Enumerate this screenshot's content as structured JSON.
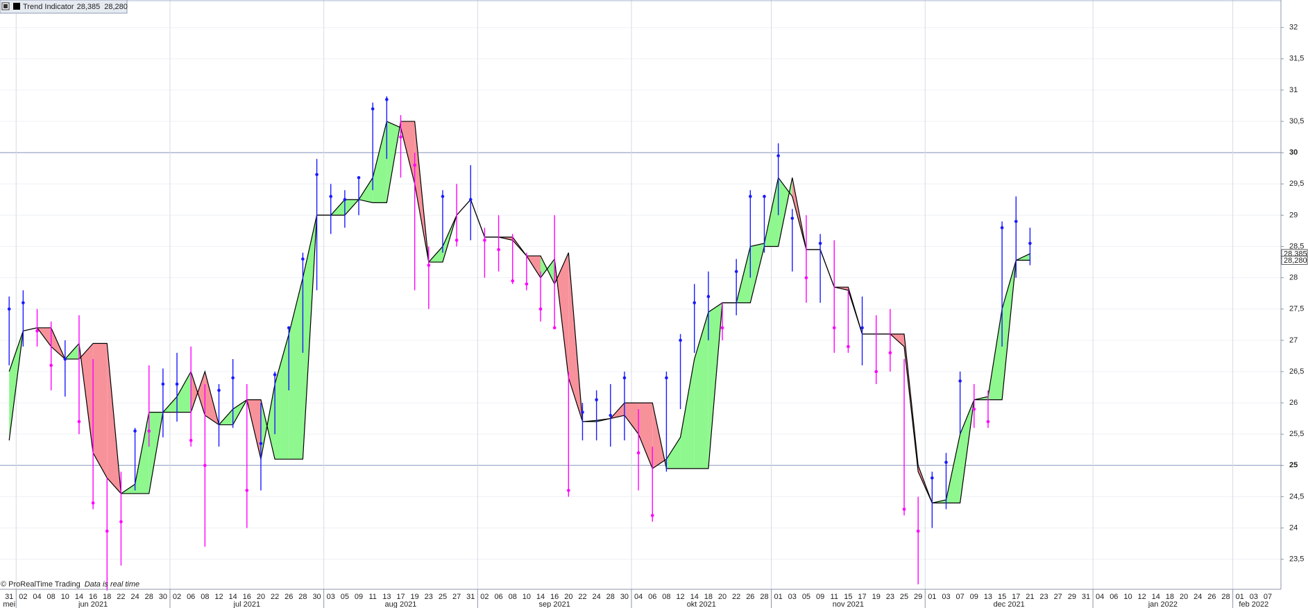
{
  "chart_data": {
    "type": "trend-indicator",
    "legend_label": "Trend Indicator",
    "last_values": [
      {
        "value": 28.385,
        "label": "28,385"
      },
      {
        "value": 28.28,
        "label": "28,280"
      }
    ],
    "x_labels": [
      "31",
      "02",
      "04",
      "08",
      "10",
      "14",
      "16",
      "18",
      "22",
      "24",
      "28",
      "30",
      "02",
      "06",
      "08",
      "12",
      "14",
      "16",
      "20",
      "22",
      "26",
      "28",
      "30",
      "03",
      "05",
      "09",
      "11",
      "13",
      "17",
      "19",
      "23",
      "25",
      "27",
      "31",
      "02",
      "06",
      "08",
      "10",
      "14",
      "16",
      "20",
      "22",
      "24",
      "28",
      "30",
      "04",
      "06",
      "08",
      "12",
      "14",
      "18",
      "20",
      "22",
      "26",
      "28",
      "01",
      "03",
      "05",
      "09",
      "11",
      "15",
      "17",
      "19",
      "23",
      "25",
      "29",
      "01",
      "03",
      "07",
      "09",
      "13",
      "15",
      "17",
      "21",
      "23",
      "27",
      "29",
      "31",
      "04",
      "06",
      "10",
      "12",
      "14",
      "18",
      "20",
      "24",
      "26",
      "28",
      "01",
      "03",
      "07"
    ],
    "month_labels": [
      "mei",
      "jun 2021",
      "jul 2021",
      "aug 2021",
      "sep 2021",
      "okt 2021",
      "nov 2021",
      "dec 2021",
      "jan 2022",
      "feb 2022"
    ],
    "ylim": [
      23.02,
      32.44
    ],
    "yticks": [
      {
        "value": 23.5,
        "label": "23,5"
      },
      24,
      {
        "value": 24.5,
        "label": "24,5"
      },
      25,
      {
        "value": 25.5,
        "label": "25,5"
      },
      26,
      {
        "value": 26.5,
        "label": "26,5"
      },
      27,
      {
        "value": 27.5,
        "label": "27,5"
      },
      28,
      {
        "value": 28.5,
        "label": "28,5"
      },
      29,
      {
        "value": 29.5,
        "label": "29,5"
      },
      30,
      {
        "value": 30.5,
        "label": "30,5"
      },
      31,
      {
        "value": 31.5,
        "label": "31,5"
      },
      32
    ],
    "highlight_lines": [
      25,
      30
    ],
    "grid": true,
    "bar_colors": {
      "up": "#1a1aff",
      "down": "#ff00ff"
    },
    "bars": {
      "high": [
        27.7,
        27.8,
        27.5,
        27.3,
        27.0,
        27.4,
        26.7,
        24.8,
        24.9,
        25.6,
        26.6,
        26.55,
        26.8,
        26.9,
        26.3,
        26.3,
        26.7,
        26.3,
        26.0,
        26.5,
        27.2,
        28.4,
        29.9,
        29.5,
        29.4,
        29.6,
        30.8,
        30.9,
        30.6,
        30.0,
        28.5,
        29.4,
        29.5,
        29.8,
        28.8,
        29.0,
        28.7,
        28.4,
        28.1,
        29.0,
        26.5,
        26.0,
        26.2,
        26.3,
        26.5,
        25.9,
        25.3,
        26.5,
        27.1,
        27.9,
        28.1,
        27.6,
        28.3,
        29.4,
        29.3,
        30.15,
        29.1,
        29.0,
        28.7,
        28.6,
        27.8,
        27.7,
        27.4,
        27.5,
        26.7,
        24.5,
        24.9,
        25.2,
        26.5,
        26.3,
        26.2,
        28.9,
        29.3,
        28.8,
        null,
        null,
        null,
        null,
        null,
        null,
        null,
        null,
        null,
        null,
        null,
        null,
        null,
        null,
        null,
        null,
        null
      ],
      "low": [
        26.6,
        26.9,
        26.9,
        26.2,
        26.1,
        25.5,
        24.3,
        23.0,
        23.4,
        24.6,
        25.3,
        25.45,
        25.7,
        25.3,
        23.7,
        25.3,
        25.6,
        24.0,
        24.6,
        25.5,
        26.2,
        26.8,
        27.8,
        28.7,
        28.8,
        29.0,
        29.4,
        29.9,
        29.6,
        27.8,
        27.5,
        28.4,
        28.5,
        28.6,
        28.0,
        28.1,
        27.9,
        27.8,
        27.3,
        27.2,
        24.5,
        25.4,
        25.4,
        25.3,
        25.4,
        24.6,
        24.1,
        24.9,
        25.9,
        26.8,
        27.0,
        27.0,
        27.4,
        28.0,
        28.4,
        29.0,
        28.1,
        27.6,
        27.6,
        26.8,
        26.8,
        26.6,
        26.3,
        26.5,
        24.2,
        23.1,
        24.0,
        24.3,
        25.5,
        25.6,
        25.6,
        26.9,
        28.0,
        28.2,
        null,
        null,
        null,
        null,
        null,
        null,
        null,
        null,
        null,
        null,
        null,
        null,
        null,
        null,
        null,
        null,
        null
      ],
      "close": [
        27.5,
        27.6,
        27.15,
        26.6,
        26.7,
        25.7,
        24.4,
        23.95,
        24.1,
        25.55,
        25.55,
        26.3,
        26.3,
        25.4,
        25.0,
        26.2,
        26.4,
        24.6,
        25.35,
        26.45,
        27.2,
        28.3,
        29.65,
        29.3,
        29.25,
        29.6,
        30.7,
        30.85,
        30.25,
        29.8,
        28.2,
        29.3,
        28.6,
        29.25,
        28.6,
        28.45,
        27.95,
        27.9,
        27.5,
        27.2,
        24.6,
        25.85,
        26.05,
        25.8,
        26.4,
        25.2,
        24.2,
        26.4,
        27.0,
        27.6,
        27.7,
        27.2,
        28.1,
        29.3,
        29.3,
        29.95,
        28.95,
        28.0,
        28.55,
        27.2,
        26.9,
        27.2,
        26.5,
        26.8,
        24.3,
        23.95,
        24.8,
        25.05,
        26.35,
        25.9,
        25.7,
        28.8,
        28.9,
        28.55,
        null,
        null,
        null,
        null,
        null,
        null,
        null,
        null,
        null,
        null,
        null,
        null,
        null,
        null,
        null,
        null,
        null
      ],
      "dir": [
        "up",
        "up",
        "down",
        "down",
        "up",
        "down",
        "down",
        "down",
        "down",
        "up",
        "down",
        "up",
        "up",
        "down",
        "down",
        "up",
        "up",
        "down",
        "up",
        "up",
        "up",
        "up",
        "up",
        "up",
        "up",
        "up",
        "up",
        "up",
        "down",
        "down",
        "down",
        "up",
        "down",
        "up",
        "down",
        "down",
        "down",
        "down",
        "down",
        "down",
        "down",
        "up",
        "up",
        "up",
        "up",
        "down",
        "down",
        "up",
        "up",
        "up",
        "up",
        "down",
        "up",
        "up",
        "up",
        "up",
        "up",
        "down",
        "up",
        "down",
        "down",
        "up",
        "down",
        "down",
        "down",
        "down",
        "up",
        "up",
        "up",
        "down",
        "down",
        "up",
        "up",
        "up",
        null,
        null,
        null,
        null,
        null,
        null,
        null,
        null,
        null,
        null,
        null,
        null,
        null,
        null,
        null,
        null,
        null
      ]
    },
    "trend": {
      "colors": {
        "rise": "#8ef78e",
        "fall": "#f7929b",
        "line": "#000000"
      },
      "fast": [
        26.5,
        27.15,
        27.2,
        26.9,
        26.7,
        26.95,
        25.2,
        24.8,
        24.55,
        24.7,
        25.85,
        25.85,
        26.1,
        26.5,
        25.8,
        25.65,
        25.9,
        26.05,
        25.1,
        26.3,
        27.1,
        28.0,
        29.0,
        29.0,
        29.25,
        29.25,
        29.6,
        30.5,
        30.4,
        29.5,
        28.25,
        28.5,
        29.0,
        29.25,
        28.65,
        28.65,
        28.6,
        28.35,
        28.0,
        28.3,
        26.4,
        25.7,
        25.72,
        25.75,
        25.8,
        25.5,
        24.95,
        25.1,
        25.45,
        26.7,
        27.45,
        27.6,
        27.6,
        28.5,
        28.55,
        29.6,
        29.3,
        28.45,
        28.45,
        27.85,
        27.8,
        27.1,
        27.1,
        27.1,
        26.9,
        24.9,
        24.4,
        24.45,
        25.5,
        26.05,
        26.1,
        27.5,
        28.28,
        28.385,
        null,
        null,
        null,
        null,
        null,
        null,
        null,
        null,
        null,
        null,
        null,
        null,
        null,
        null,
        null,
        null,
        null
      ],
      "slow": [
        25.4,
        27.15,
        27.2,
        27.2,
        26.7,
        26.7,
        26.95,
        26.95,
        24.55,
        24.55,
        24.55,
        25.85,
        25.85,
        25.85,
        26.5,
        25.65,
        25.65,
        26.05,
        26.05,
        25.1,
        25.1,
        25.1,
        29.0,
        29.0,
        29.0,
        29.25,
        29.2,
        29.2,
        30.5,
        30.5,
        28.25,
        28.25,
        29.0,
        29.25,
        28.65,
        28.65,
        28.65,
        28.35,
        28.35,
        27.9,
        28.4,
        25.7,
        25.7,
        25.75,
        26.0,
        26.0,
        26.0,
        24.95,
        24.95,
        24.95,
        24.95,
        27.6,
        27.6,
        27.6,
        28.5,
        28.5,
        29.6,
        28.45,
        28.45,
        27.85,
        27.85,
        27.1,
        27.1,
        27.1,
        27.1,
        25.0,
        24.4,
        24.4,
        24.4,
        26.05,
        26.05,
        26.05,
        28.28,
        28.28,
        null,
        null,
        null,
        null,
        null,
        null,
        null,
        null,
        null,
        null,
        null,
        null,
        null,
        null,
        null,
        null,
        null
      ]
    }
  },
  "footer": {
    "copyright": "© ProRealTime Trading",
    "status": "Data is real time"
  }
}
